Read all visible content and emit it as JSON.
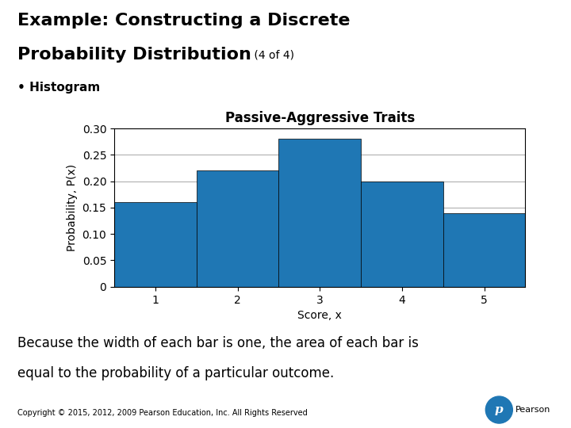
{
  "chart_data": {
    "type": "bar",
    "title": "Passive-Aggressive Traits",
    "xlabel": "Score, x",
    "ylabel": "Probability, P(x)",
    "x": [
      1,
      2,
      3,
      4,
      5
    ],
    "values": [
      0.16,
      0.22,
      0.28,
      0.2,
      0.14
    ],
    "xlim": [
      0.5,
      5.5
    ],
    "xticks": [
      1,
      2,
      3,
      4,
      5
    ],
    "ylim": [
      0,
      0.3
    ],
    "yticks": [
      0,
      0.05,
      {
        "value": 0.1,
        "label": "0.10"
      },
      0.15,
      {
        "value": 0.2,
        "label": "0.20"
      },
      0.25,
      {
        "value": 0.3,
        "label": "0.30"
      }
    ],
    "grid": true,
    "annotations": [
      "Example: Constructing a Discrete",
      "Probability Distribution",
      " (4 of 4)",
      "• Histogram",
      "Because the width of each bar is one, the area of each bar is",
      "equal to the probability of a particular outcome.",
      "Copyright © 2015, 2012, 2009 Pearson Education, Inc. All Rights Reserved",
      "p",
      "Pearson"
    ]
  }
}
